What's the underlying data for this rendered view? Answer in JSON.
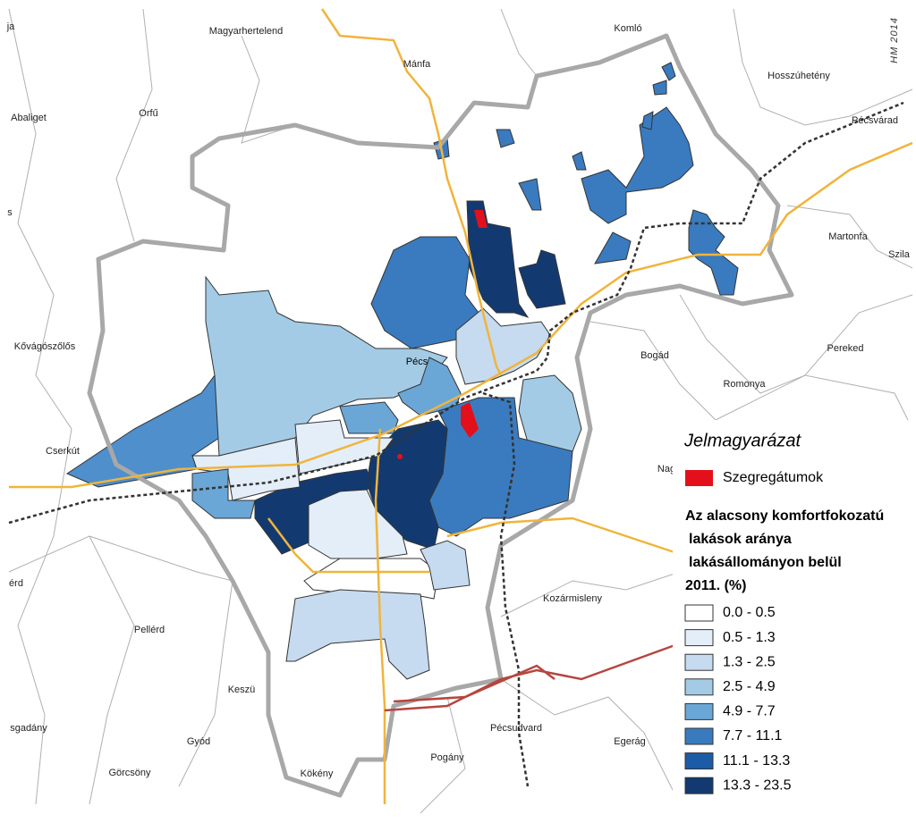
{
  "places": [
    "ja",
    "Magyarhertelend",
    "Mánfa",
    "Komló",
    "Hosszúhetény",
    "Abaliget",
    "Orfű",
    "Pécsvárad",
    "s",
    "Martonfa",
    "Szila",
    "Kővágószőlős",
    "Pécs",
    "Bogád",
    "Pereked",
    "Romonya",
    "Cserkút",
    "Nag",
    "érd",
    "Kozármisleny",
    "Pellérd",
    "Keszü",
    "sgadány",
    "Gyód",
    "Pécsudvard",
    "Egerág",
    "Görcsöny",
    "Kökény",
    "Pogány"
  ],
  "signature": "HM 2014",
  "legend": {
    "title": "Jelmagyarázat",
    "segregated": {
      "label": "Szegregátumok",
      "color": "#e3101c"
    },
    "subtitle": [
      "Az alacsony komfortfokozatú",
      "lakások aránya",
      "lakásállományon belül",
      "2011. (%)"
    ],
    "items": [
      {
        "label": "0.0 - 0.5",
        "color": "#ffffff"
      },
      {
        "label": "0.5 - 1.3",
        "color": "#e3eef9"
      },
      {
        "label": "1.3 - 2.5",
        "color": "#c6dbef"
      },
      {
        "label": "2.5 - 4.9",
        "color": "#a3cbe5"
      },
      {
        "label": "4.9 - 7.7",
        "color": "#6aa6d6"
      },
      {
        "label": "7.7 - 11.1",
        "color": "#3a7bbf"
      },
      {
        "label": "11.1 - 13.3",
        "color": "#1c5ba5"
      },
      {
        "label": "13.3 - 23.5",
        "color": "#133a70"
      }
    ]
  }
}
